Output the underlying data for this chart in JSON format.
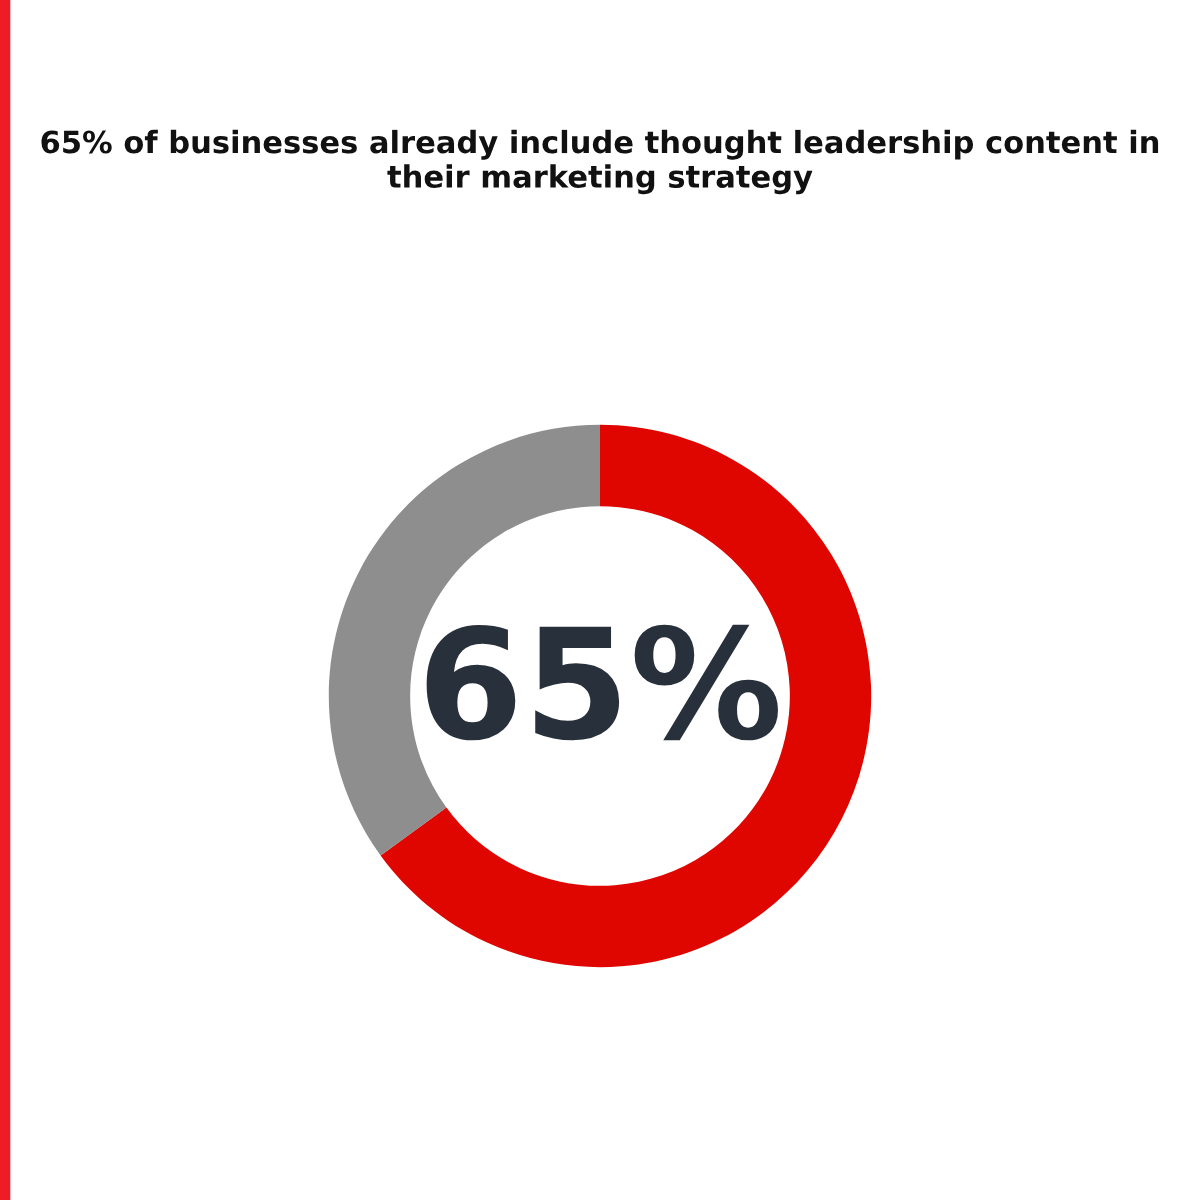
{
  "chart_data": {
    "type": "donut",
    "title": "65% of businesses already include thought leadership content in their marketing strategy",
    "categories": [
      null,
      null
    ],
    "values": [
      65,
      35
    ],
    "colors": [
      "#e00600",
      "#8e8e8e"
    ],
    "value_labels": [
      "65%",
      null
    ]
  }
}
